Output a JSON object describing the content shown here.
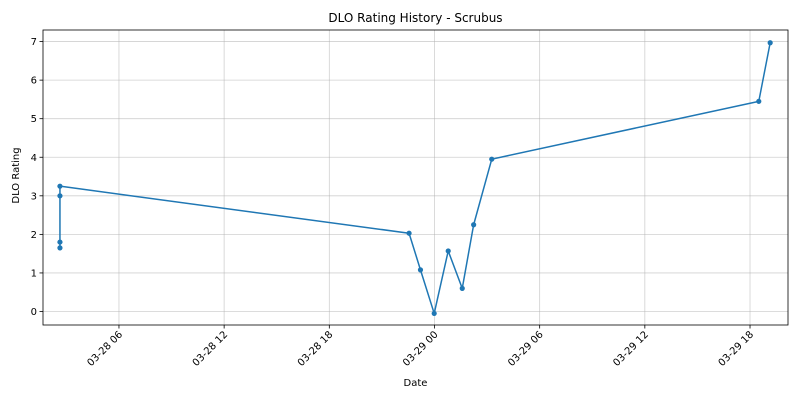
{
  "chart_data": {
    "type": "line",
    "title": "DLO Rating History - Scrubus",
    "xlabel": "Date",
    "ylabel": "DLO Rating",
    "x_is_time": true,
    "xlim": [
      "2024-03-28T01:40:00",
      "2024-03-29T20:10:00"
    ],
    "ylim": [
      -0.35,
      7.3
    ],
    "grid": true,
    "line_color": "#1f77b4",
    "x_ticks": [
      {
        "value": "2024-03-28T06:00:00",
        "label": "03-28 06"
      },
      {
        "value": "2024-03-28T12:00:00",
        "label": "03-28 12"
      },
      {
        "value": "2024-03-28T18:00:00",
        "label": "03-28 18"
      },
      {
        "value": "2024-03-29T00:00:00",
        "label": "03-29 00"
      },
      {
        "value": "2024-03-29T06:00:00",
        "label": "03-29 06"
      },
      {
        "value": "2024-03-29T12:00:00",
        "label": "03-29 12"
      },
      {
        "value": "2024-03-29T18:00:00",
        "label": "03-29 18"
      }
    ],
    "y_ticks": [
      0,
      1,
      2,
      3,
      4,
      5,
      6,
      7
    ],
    "series": [
      {
        "x": [
          "2024-03-28T02:38:00",
          "2024-03-28T02:38:00",
          "2024-03-28T02:38:00",
          "2024-03-28T02:38:00",
          "2024-03-28T22:33:00",
          "2024-03-28T23:12:00",
          "2024-03-28T23:59:00",
          "2024-03-29T00:47:00",
          "2024-03-29T01:35:00",
          "2024-03-29T02:14:00",
          "2024-03-29T03:16:00",
          "2024-03-29T18:30:00",
          "2024-03-29T19:09:00"
        ],
        "values": [
          1.65,
          1.8,
          3.0,
          3.25,
          2.03,
          1.08,
          -0.05,
          1.57,
          0.6,
          2.25,
          3.95,
          5.45,
          6.97
        ]
      }
    ]
  }
}
